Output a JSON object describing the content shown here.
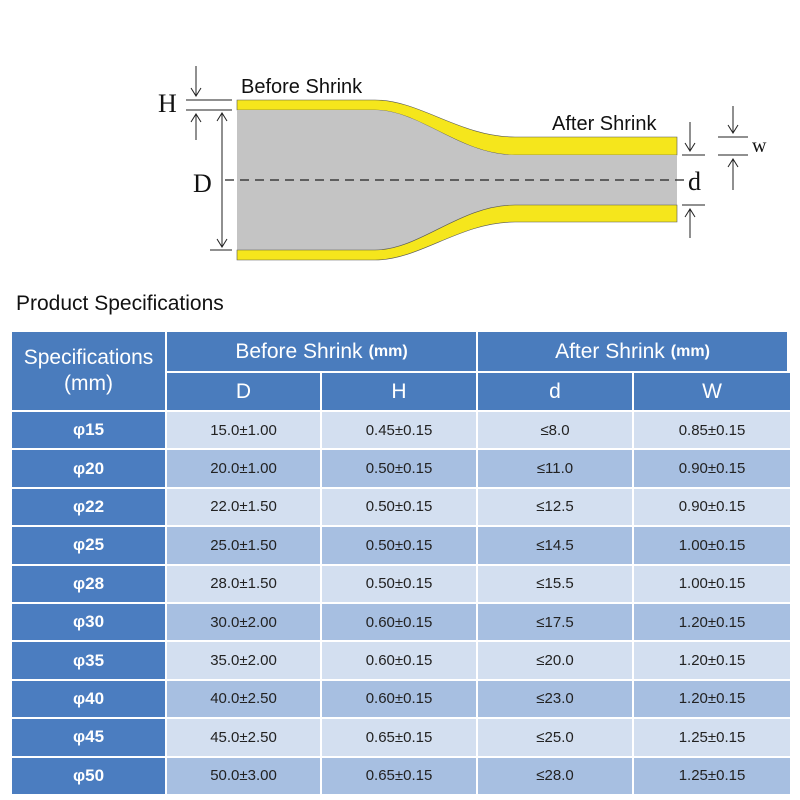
{
  "diagram": {
    "before_label": "Before Shrink",
    "after_label": "After Shrink",
    "H": "H",
    "D": "D",
    "d": "d",
    "w": "w"
  },
  "section_title": "Product Specifications",
  "table": {
    "corner": [
      "Specifications",
      "(mm)"
    ],
    "groups": [
      {
        "name": "Before Shrink",
        "unit": "(mm)"
      },
      {
        "name": "After Shrink",
        "unit": "(mm)"
      }
    ],
    "columns": [
      "D",
      "H",
      "d",
      "W"
    ],
    "rows": [
      [
        "φ15",
        "15.0±1.00",
        "0.45±0.15",
        "≤8.0",
        "0.85±0.15"
      ],
      [
        "φ20",
        "20.0±1.00",
        "0.50±0.15",
        "≤11.0",
        "0.90±0.15"
      ],
      [
        "φ22",
        "22.0±1.50",
        "0.50±0.15",
        "≤12.5",
        "0.90±0.15"
      ],
      [
        "φ25",
        "25.0±1.50",
        "0.50±0.15",
        "≤14.5",
        "1.00±0.15"
      ],
      [
        "φ28",
        "28.0±1.50",
        "0.50±0.15",
        "≤15.5",
        "1.00±0.15"
      ],
      [
        "φ30",
        "30.0±2.00",
        "0.60±0.15",
        "≤17.5",
        "1.20±0.15"
      ],
      [
        "φ35",
        "35.0±2.00",
        "0.60±0.15",
        "≤20.0",
        "1.20±0.15"
      ],
      [
        "φ40",
        "40.0±2.50",
        "0.60±0.15",
        "≤23.0",
        "1.20±0.15"
      ],
      [
        "φ45",
        "45.0±2.50",
        "0.65±0.15",
        "≤25.0",
        "1.25±0.15"
      ],
      [
        "φ50",
        "50.0±3.00",
        "0.65±0.15",
        "≤28.0",
        "1.25±0.15"
      ]
    ]
  }
}
